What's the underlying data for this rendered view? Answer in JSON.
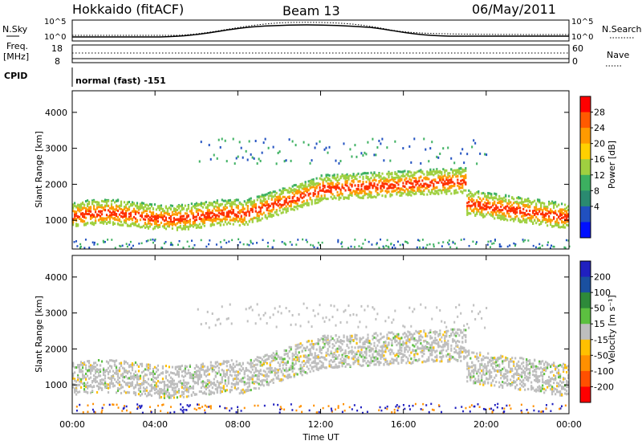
{
  "header": {
    "radar": "Hokkaido (fitACF)",
    "beam": "Beam 13",
    "date": "06/May/2011"
  },
  "noise_panel": {
    "left_label": "N.Sky",
    "right_label": "N.Search",
    "left_ticks": [
      "10^5",
      "10^0"
    ],
    "right_ticks": [
      "10^5",
      "10^0"
    ]
  },
  "freq_panel": {
    "left_label_1": "Freq.",
    "left_label_2": "[MHz]",
    "right_label": "Nave",
    "left_ticks": [
      "18",
      "8"
    ],
    "right_ticks": [
      "60",
      "0"
    ]
  },
  "cpid": {
    "label": "CPID",
    "value": "normal (fast) -151"
  },
  "chart_data": [
    {
      "type": "heatmap",
      "parameter": "Power",
      "ylabel": "Slant Range [km]",
      "ylim": [
        200,
        4600
      ],
      "yticks": [
        "4000",
        "3000",
        "2000",
        "1000"
      ],
      "xlim": [
        "00:00",
        "24:00"
      ],
      "colorbar": {
        "label": "Power [dB]",
        "ticks": [
          "28",
          "24",
          "20",
          "16",
          "12",
          "8",
          "4"
        ],
        "colors": [
          "#ff0000",
          "#ff5a00",
          "#ff9a00",
          "#ffd000",
          "#9fd040",
          "#3cb060",
          "#2a8a70",
          "#2050c0",
          "#0010ff"
        ]
      }
    },
    {
      "type": "heatmap",
      "parameter": "Velocity",
      "ylabel": "Slant Range [km]",
      "ylim": [
        200,
        4600
      ],
      "yticks": [
        "4000",
        "3000",
        "2000",
        "1000"
      ],
      "xlim": [
        "00:00",
        "24:00"
      ],
      "colorbar": {
        "label": "Velocity [m s⁻¹]",
        "ticks": [
          "200",
          "100",
          "50",
          "15",
          "-15",
          "-50",
          "-100",
          "-200"
        ],
        "colors": [
          "#2020c0",
          "#1a50a0",
          "#2e8a3a",
          "#5cc040",
          "#bebebe",
          "#ffc000",
          "#ff9000",
          "#ff5000",
          "#ff0000"
        ]
      }
    }
  ],
  "time_axis": {
    "label": "Time UT",
    "ticks": [
      "00:00",
      "04:00",
      "08:00",
      "12:00",
      "16:00",
      "20:00",
      "00:00"
    ]
  }
}
